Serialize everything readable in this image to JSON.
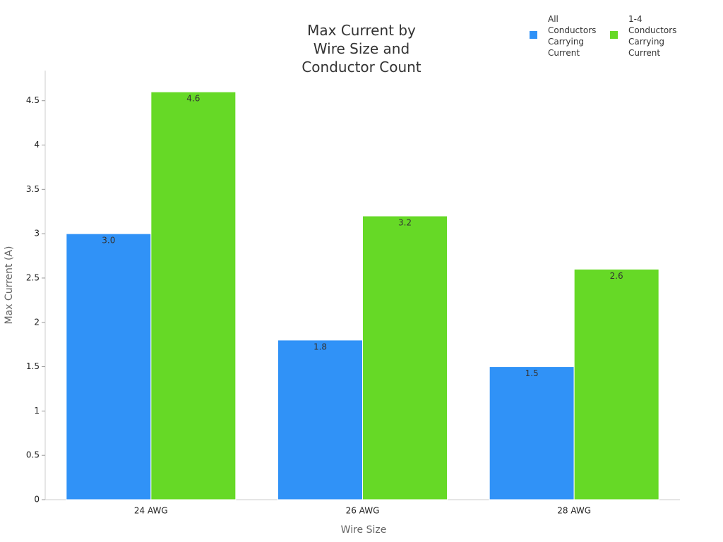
{
  "chart_data": {
    "type": "bar",
    "title": "Max Current by Wire Size and Conductor Count",
    "x_label": "Wire Size",
    "y_label": "Max Current (A)",
    "categories": [
      "24 AWG",
      "26 AWG",
      "28 AWG"
    ],
    "series": [
      {
        "name": "All Conductors Carrying Current",
        "color": "#3092f7",
        "values": [
          3,
          1.8,
          1.5
        ],
        "value_labels": [
          "3.0",
          "1.8",
          "1.5"
        ]
      },
      {
        "name": "1-4 Conductors Carrying Current",
        "color": "#66d926",
        "values": [
          4.6,
          3.2,
          2.6
        ],
        "value_labels": [
          "4.6",
          "3.2",
          "2.6"
        ]
      }
    ],
    "ylim": [
      0,
      4.84
    ],
    "yticks": [
      0,
      0.5,
      1,
      1.5,
      2,
      2.5,
      3,
      3.5,
      4,
      4.5
    ],
    "grid": false,
    "legend": "top-right"
  }
}
